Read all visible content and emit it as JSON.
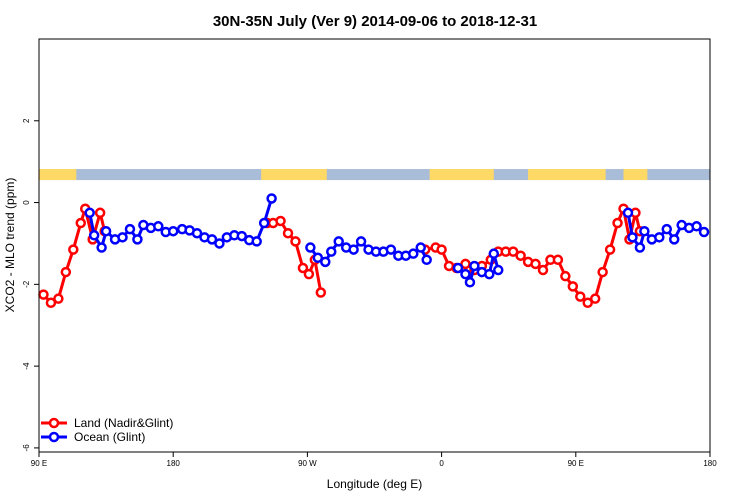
{
  "chart_data": {
    "type": "line",
    "title": "30N-35N July (Ver 9)   2014-09-06 to 2018-12-31",
    "xlabel": "Longitude (deg E)",
    "ylabel": "XCO2 - MLO trend (ppm)",
    "xlim": [
      90,
      540
    ],
    "ylim": [
      -6.1,
      4.0
    ],
    "x_ticks": [
      {
        "value": 90,
        "label": "90 E"
      },
      {
        "value": 180,
        "label": "180"
      },
      {
        "value": 270,
        "label": "90 W"
      },
      {
        "value": 360,
        "label": "0"
      },
      {
        "value": 450,
        "label": "90 E"
      },
      {
        "value": 540,
        "label": "180"
      }
    ],
    "y_ticks": [
      {
        "value": 2,
        "label": "2"
      },
      {
        "value": 0,
        "label": "0"
      },
      {
        "value": -2,
        "label": "-2"
      },
      {
        "value": -4,
        "label": "-4"
      },
      {
        "value": -6,
        "label": "-6"
      }
    ],
    "landmask_band": {
      "y_range": [
        0.55,
        0.82
      ],
      "land_color": "#ffd966",
      "ocean_color": "#a9bcd8",
      "land_segments": [
        [
          90,
          115
        ],
        [
          239,
          283
        ],
        [
          352,
          395
        ],
        [
          418,
          470
        ],
        [
          482,
          498
        ]
      ]
    },
    "legend_position": "bottom-left",
    "series": [
      {
        "name": "Land (Nadir&Glint)",
        "color": "#ff0000",
        "segments": [
          [
            [
              93,
              -2.25
            ],
            [
              98,
              -2.45
            ],
            [
              103,
              -2.35
            ],
            [
              108,
              -1.7
            ],
            [
              113,
              -1.15
            ],
            [
              118,
              -0.5
            ],
            [
              121,
              -0.15
            ],
            [
              126,
              -0.9
            ],
            [
              131,
              -0.25
            ],
            [
              134,
              -0.7
            ]
          ],
          [
            [
              243,
              -0.5
            ],
            [
              247,
              -0.5
            ],
            [
              252,
              -0.45
            ],
            [
              257,
              -0.75
            ],
            [
              262,
              -0.95
            ],
            [
              267,
              -1.6
            ],
            [
              271,
              -1.75
            ],
            [
              275,
              -1.4
            ],
            [
              279,
              -2.2
            ]
          ],
          [
            [
              349,
              -1.15
            ],
            [
              356,
              -1.1
            ],
            [
              360,
              -1.15
            ],
            [
              365,
              -1.55
            ],
            [
              370,
              -1.6
            ],
            [
              376,
              -1.5
            ],
            [
              382,
              -1.65
            ],
            [
              387,
              -1.55
            ],
            [
              393,
              -1.4
            ],
            [
              398,
              -1.2
            ],
            [
              403,
              -1.2
            ],
            [
              408,
              -1.2
            ],
            [
              413,
              -1.3
            ],
            [
              418,
              -1.45
            ],
            [
              423,
              -1.5
            ],
            [
              428,
              -1.65
            ],
            [
              433,
              -1.4
            ],
            [
              438,
              -1.4
            ],
            [
              443,
              -1.8
            ],
            [
              448,
              -2.05
            ],
            [
              453,
              -2.3
            ],
            [
              458,
              -2.45
            ],
            [
              463,
              -2.35
            ],
            [
              468,
              -1.7
            ],
            [
              473,
              -1.15
            ],
            [
              478,
              -0.5
            ],
            [
              482,
              -0.15
            ],
            [
              486,
              -0.9
            ],
            [
              490,
              -0.25
            ],
            [
              493,
              -0.7
            ]
          ]
        ]
      },
      {
        "name": "Ocean (Glint)",
        "color": "#0000ff",
        "segments": [
          [
            [
              124,
              -0.25
            ],
            [
              127,
              -0.8
            ],
            [
              132,
              -1.1
            ],
            [
              135,
              -0.7
            ],
            [
              141,
              -0.9
            ],
            [
              146,
              -0.85
            ],
            [
              151,
              -0.65
            ],
            [
              156,
              -0.9
            ],
            [
              160,
              -0.55
            ],
            [
              165,
              -0.62
            ],
            [
              170,
              -0.58
            ],
            [
              175,
              -0.72
            ],
            [
              180,
              -0.7
            ],
            [
              186,
              -0.65
            ],
            [
              191,
              -0.68
            ],
            [
              196,
              -0.75
            ],
            [
              201,
              -0.85
            ],
            [
              206,
              -0.9
            ],
            [
              211,
              -1.0
            ],
            [
              216,
              -0.85
            ],
            [
              221,
              -0.8
            ],
            [
              226,
              -0.82
            ],
            [
              231,
              -0.92
            ],
            [
              236,
              -0.95
            ],
            [
              241,
              -0.5
            ],
            [
              246,
              0.1
            ]
          ],
          [
            [
              272,
              -1.1
            ],
            [
              277,
              -1.35
            ],
            [
              282,
              -1.45
            ],
            [
              286,
              -1.2
            ],
            [
              291,
              -0.95
            ],
            [
              296,
              -1.1
            ],
            [
              301,
              -1.15
            ],
            [
              306,
              -0.95
            ],
            [
              311,
              -1.15
            ],
            [
              316,
              -1.2
            ],
            [
              321,
              -1.2
            ],
            [
              326,
              -1.15
            ],
            [
              331,
              -1.3
            ],
            [
              336,
              -1.3
            ],
            [
              341,
              -1.25
            ],
            [
              346,
              -1.1
            ],
            [
              350,
              -1.4
            ]
          ],
          [
            [
              371,
              -1.6
            ],
            [
              376,
              -1.75
            ],
            [
              379,
              -1.95
            ],
            [
              382,
              -1.55
            ],
            [
              387,
              -1.7
            ],
            [
              392,
              -1.75
            ],
            [
              395,
              -1.25
            ],
            [
              398,
              -1.65
            ]
          ],
          [
            [
              485,
              -0.25
            ],
            [
              488,
              -0.85
            ],
            [
              493,
              -1.1
            ],
            [
              496,
              -0.7
            ],
            [
              501,
              -0.9
            ],
            [
              506,
              -0.85
            ],
            [
              511,
              -0.65
            ],
            [
              516,
              -0.9
            ],
            [
              521,
              -0.55
            ],
            [
              526,
              -0.62
            ],
            [
              531,
              -0.58
            ],
            [
              536,
              -0.72
            ]
          ]
        ]
      }
    ]
  }
}
